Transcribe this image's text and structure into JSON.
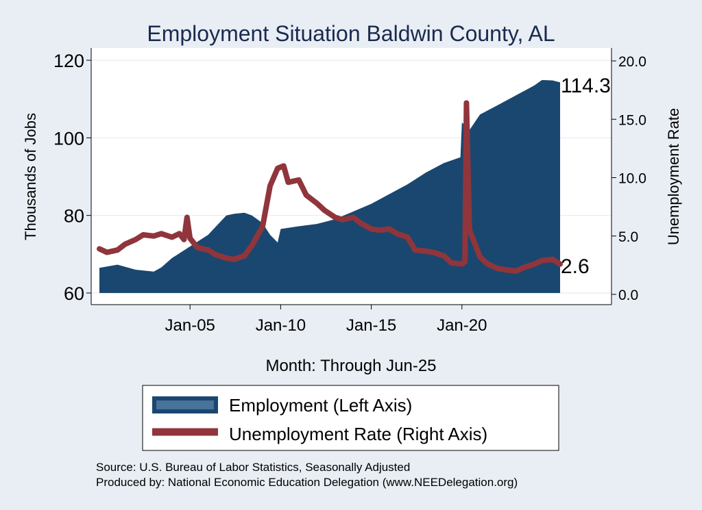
{
  "chart_data": {
    "type": "area+line",
    "title": "Employment Situation Baldwin  County, AL",
    "xlabel": "Month: Through Jun-25",
    "ylabel_left": "Thousands of Jobs",
    "ylabel_right": "Unemployment Rate",
    "x_ticks": [
      "Jan-05",
      "Jan-10",
      "Jan-15",
      "Jan-20"
    ],
    "y_left_ticks": [
      "60",
      "80",
      "100",
      "120"
    ],
    "y_left_range": [
      60,
      120
    ],
    "y_right_ticks": [
      "0.0",
      "5.0",
      "10.0",
      "15.0",
      "20.0"
    ],
    "y_right_range": [
      0,
      20
    ],
    "grid": "horizontal",
    "legend_placement": "bottom",
    "colors": {
      "employment": "#1a476f",
      "unemployment": "#90353b",
      "background": "#e8eef4",
      "plot": "#ffffff",
      "title": "#1a2a4f"
    },
    "end_labels": {
      "employment": "114.3",
      "unemployment": "2.6"
    },
    "series": [
      {
        "name": "Employment (Left Axis)",
        "kind": "area",
        "axis": "left",
        "x": [
          "2000-01",
          "2001-01",
          "2002-01",
          "2003-01",
          "2003-06",
          "2004-01",
          "2005-01",
          "2006-01",
          "2007-01",
          "2007-06",
          "2008-01",
          "2008-06",
          "2009-01",
          "2009-06",
          "2009-11",
          "2010-01",
          "2011-01",
          "2012-01",
          "2013-01",
          "2014-01",
          "2015-01",
          "2016-01",
          "2017-01",
          "2018-01",
          "2019-01",
          "2019-12",
          "2020-01",
          "2020-06",
          "2021-01",
          "2022-01",
          "2023-01",
          "2024-01",
          "2024-06",
          "2025-01",
          "2025-06"
        ],
        "values": [
          66.5,
          67.3,
          66,
          65.5,
          66.6,
          69,
          72,
          75,
          80,
          80.4,
          80.7,
          80,
          78,
          75,
          73,
          76.5,
          77.2,
          77.8,
          79,
          81,
          83,
          85.5,
          88,
          91,
          93.5,
          95,
          104,
          102,
          106,
          108.5,
          111,
          113.5,
          114.9,
          114.8,
          114.3
        ]
      },
      {
        "name": "Unemployment Rate (Right Axis)",
        "kind": "line",
        "axis": "right",
        "x": [
          "2000-01",
          "2000-06",
          "2001-01",
          "2001-06",
          "2002-01",
          "2002-06",
          "2003-01",
          "2003-06",
          "2004-01",
          "2004-06",
          "2004-09",
          "2004-11",
          "2005-01",
          "2005-06",
          "2006-01",
          "2006-06",
          "2007-01",
          "2007-06",
          "2008-01",
          "2008-06",
          "2009-01",
          "2009-06",
          "2009-11",
          "2010-03",
          "2010-06",
          "2011-01",
          "2011-06",
          "2012-01",
          "2012-06",
          "2013-01",
          "2013-06",
          "2014-01",
          "2014-06",
          "2015-01",
          "2015-06",
          "2016-01",
          "2016-06",
          "2017-01",
          "2017-06",
          "2018-01",
          "2018-06",
          "2019-01",
          "2019-06",
          "2020-01",
          "2020-03",
          "2020-04",
          "2020-06",
          "2020-10",
          "2021-01",
          "2021-06",
          "2022-01",
          "2022-06",
          "2023-01",
          "2023-06",
          "2024-01",
          "2024-06",
          "2025-01",
          "2025-06"
        ],
        "values": [
          3.9,
          3.6,
          3.8,
          4.3,
          4.7,
          5.1,
          5,
          5.2,
          4.9,
          5.2,
          4.7,
          6.6,
          4.8,
          4,
          3.8,
          3.4,
          3.1,
          3,
          3.3,
          4.2,
          5.8,
          9.3,
          10.8,
          11,
          9.6,
          9.8,
          8.5,
          7.8,
          7.2,
          6.6,
          6.4,
          6.6,
          6.1,
          5.6,
          5.5,
          5.6,
          5.2,
          4.9,
          3.8,
          3.7,
          3.6,
          3.3,
          2.7,
          2.6,
          2.8,
          16.4,
          5.5,
          4.2,
          3.2,
          2.6,
          2.2,
          2.1,
          2.0,
          2.3,
          2.6,
          2.9,
          3.0,
          2.6
        ]
      }
    ]
  },
  "footer": {
    "source": "Source: U.S. Bureau of Labor Statistics, Seasonally Adjusted",
    "produced": "Produced by: National Economic Education Delegation (www.NEEDelegation.org)"
  }
}
